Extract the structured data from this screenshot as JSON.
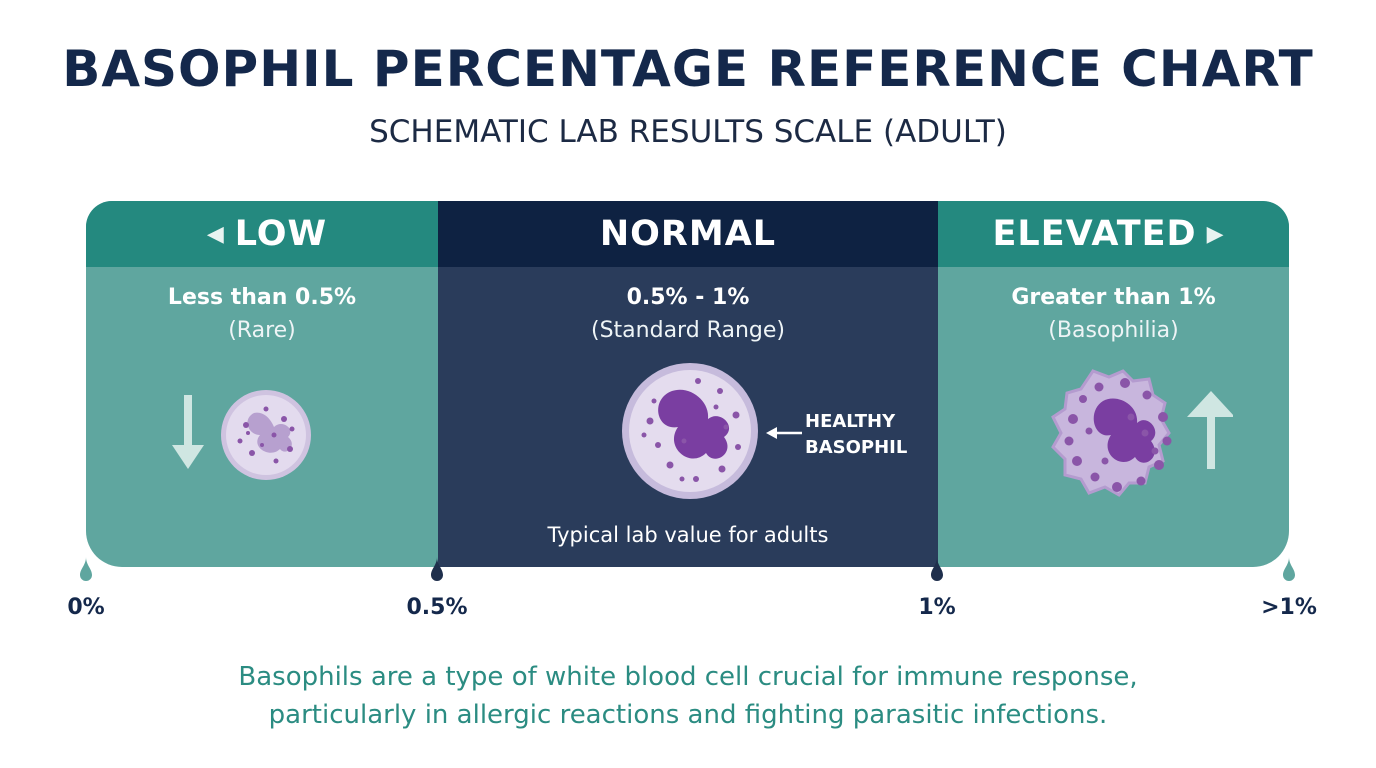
{
  "title": "BASOPHIL PERCENTAGE REFERENCE CHART",
  "subtitle": "SCHEMATIC LAB RESULTS SCALE (ADULT)",
  "zones": [
    {
      "label": "LOW",
      "range": "Less than 0.5%",
      "note": "(Rare)",
      "color": "#5fa69f",
      "header_color": "#24897f",
      "trend": "down-arrow"
    },
    {
      "label": "NORMAL",
      "range": "0.5% - 1%",
      "note": "(Standard Range)",
      "color": "#2a3c5b",
      "header_color": "#0e2242",
      "callout": "HEALTHY BASOPHIL",
      "caption": "Typical lab value for adults"
    },
    {
      "label": "ELEVATED",
      "range": "Greater than 1%",
      "note": "(Basophilia)",
      "color": "#5fa69f",
      "header_color": "#24897f",
      "trend": "up-arrow"
    }
  ],
  "scale_ticks": [
    "0%",
    "0.5%",
    "1%",
    ">1%"
  ],
  "footer": {
    "line1": "Basophils are a type of white blood cell crucial for immune response,",
    "line2": "particularly in allergic reactions and fighting parasitic infections."
  },
  "colors": {
    "title": "#14284b",
    "teal": "#5fa69f",
    "navy": "#2a3c5b",
    "cell_fill": "#ddd3ea",
    "cell_granule": "#8a55a8",
    "footer_text": "#2b8c82"
  }
}
